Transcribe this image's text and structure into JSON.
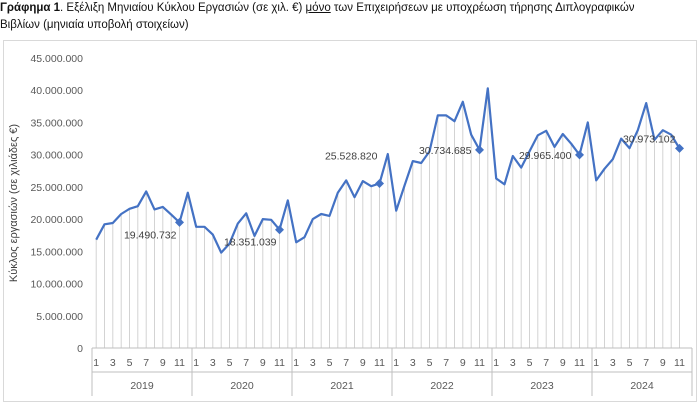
{
  "caption": {
    "label": "Γράφημα 1",
    "part1": ". Εξέλιξη Μηνιαίου Κύκλου Εργασιών (σε χιλ. €) ",
    "underlined": "μόνο",
    "part2": " των Επιχειρήσεων με υποχρέωση τήρησης Διπλογραφικών",
    "line2": "Βιβλίων (μηνιαία υποβολή στοιχείων)"
  },
  "chart_data": {
    "type": "line",
    "title": "",
    "xlabel": "",
    "ylabel": "Κύκλος εργασιών (σε χιλιάδες €)",
    "ylim": [
      0,
      45000000
    ],
    "yticks": [
      0,
      5000000,
      10000000,
      15000000,
      20000000,
      25000000,
      30000000,
      35000000,
      40000000,
      45000000
    ],
    "ytick_labels": [
      "0",
      "5.000.000",
      "10.000.000",
      "15.000.000",
      "20.000.000",
      "25.000.000",
      "30.000.000",
      "35.000.000",
      "40.000.000",
      "45.000.000"
    ],
    "years": [
      "2019",
      "2020",
      "2021",
      "2022",
      "2023",
      "2024"
    ],
    "month_tick_labels": [
      "1",
      "3",
      "5",
      "7",
      "9",
      "11"
    ],
    "grid": false,
    "color": "#4472c4",
    "series": [
      {
        "values": [
          16800000,
          19200000,
          19400000,
          20800000,
          21600000,
          22000000,
          24300000,
          21500000,
          21900000,
          20700000,
          19490732,
          24100000,
          18800000,
          18800000,
          17600000,
          14800000,
          16200000,
          19300000,
          20900000,
          17400000,
          20000000,
          19900000,
          18351039,
          22900000,
          16400000,
          17200000,
          20000000,
          20800000,
          20500000,
          24100000,
          26000000,
          23400000,
          25900000,
          25100000,
          25528820,
          30100000,
          21300000,
          25200000,
          29000000,
          28700000,
          30500000,
          36100000,
          36100000,
          35200000,
          38200000,
          33100000,
          30734685,
          40300000,
          26300000,
          25400000,
          29800000,
          28000000,
          30500000,
          33000000,
          33700000,
          31200000,
          33200000,
          31700000,
          29965400,
          35000000,
          26000000,
          27800000,
          29300000,
          32500000,
          31000000,
          33800000,
          38000000,
          32300000,
          33800000,
          33100000,
          30973102
        ]
      }
    ],
    "annotations": [
      {
        "index": 10,
        "label": "19.490.732"
      },
      {
        "index": 22,
        "label": "18.351.039"
      },
      {
        "index": 34,
        "label": "25.528.820"
      },
      {
        "index": 46,
        "label": "30.734.685"
      },
      {
        "index": 58,
        "label": "29.965.400"
      },
      {
        "index": 70,
        "label": "30.973.102"
      }
    ]
  }
}
